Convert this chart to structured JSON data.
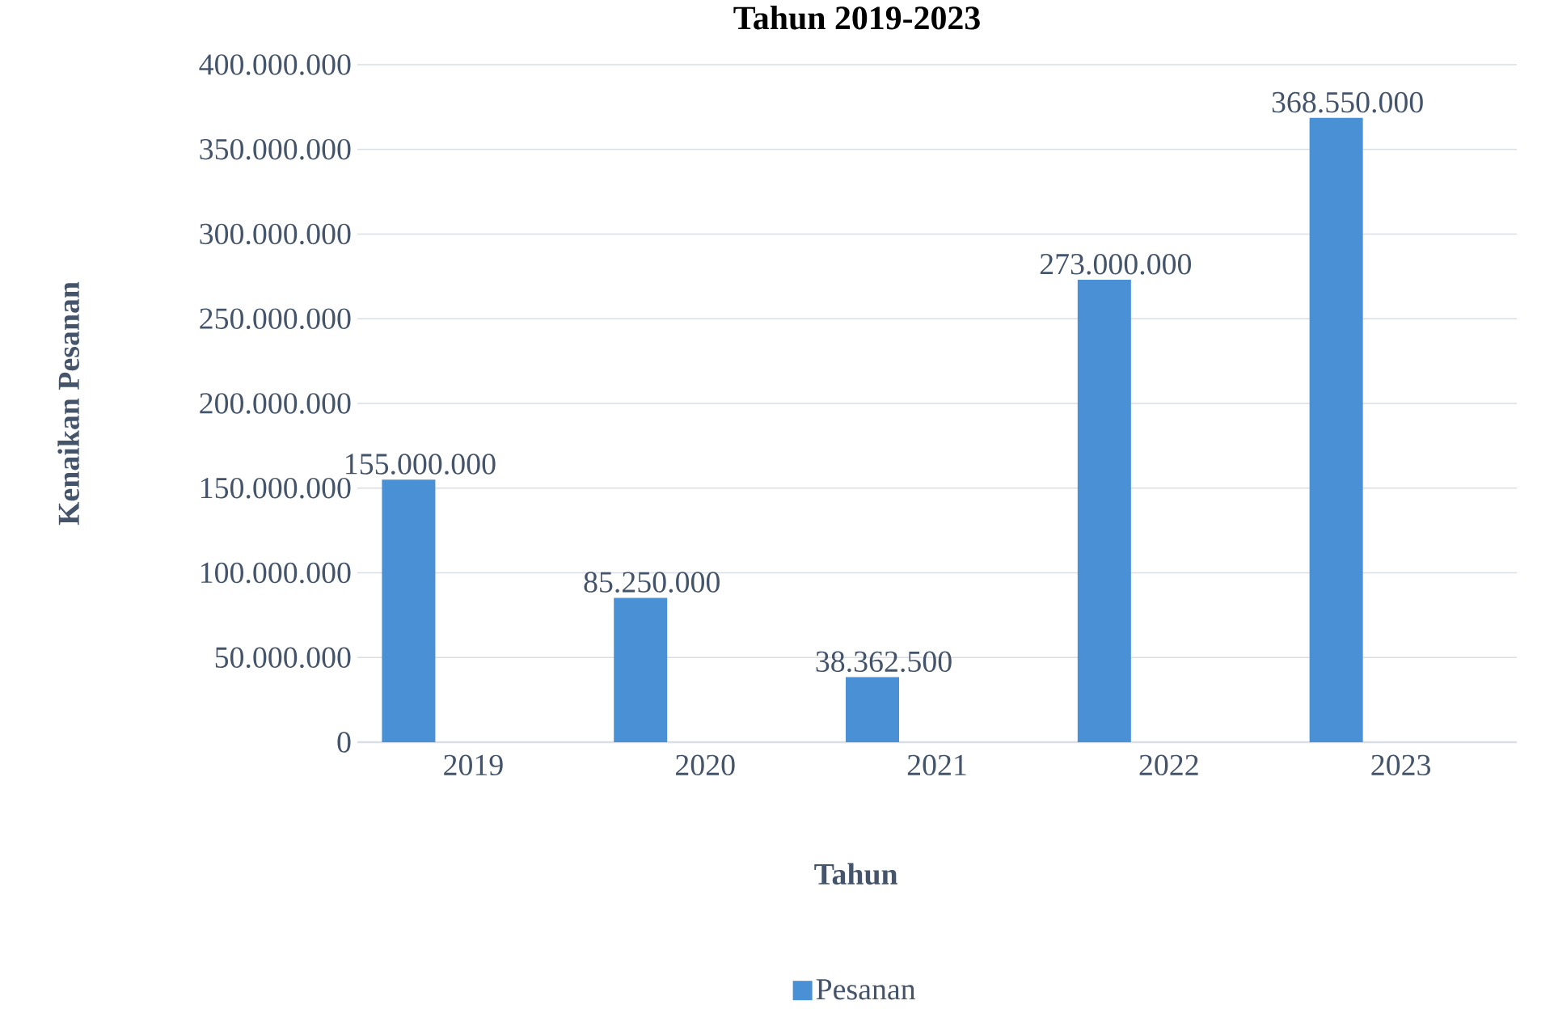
{
  "chart_data": {
    "type": "bar",
    "title": "Tahun 2019-2023",
    "xlabel": "Tahun",
    "ylabel": "Kenaikan Pesanan",
    "categories": [
      "2019",
      "2020",
      "2021",
      "2022",
      "2023"
    ],
    "series": [
      {
        "name": "Pesanan",
        "color": "#4a90d4",
        "values": [
          155000000,
          85250000,
          38362500,
          273000000,
          368550000
        ]
      }
    ],
    "ylim": [
      0,
      400000000
    ],
    "yticks": [
      {
        "value": 0,
        "label": "0"
      },
      {
        "value": 50000000,
        "label": "50.000.000"
      },
      {
        "value": 100000000,
        "label": "100.000.000"
      },
      {
        "value": 150000000,
        "label": "150.000.000"
      },
      {
        "value": 200000000,
        "label": "200.000.000"
      },
      {
        "value": 250000000,
        "label": "250.000.000"
      },
      {
        "value": 300000000,
        "label": "300.000.000"
      },
      {
        "value": 350000000,
        "label": "350.000.000"
      },
      {
        "value": 400000000,
        "label": "400.000.000"
      }
    ],
    "value_labels": [
      "155.000.000",
      "85.250.000",
      "38.362.500",
      "273.000.000",
      "368.550.000"
    ],
    "grid": "y",
    "legend": "bottom"
  }
}
